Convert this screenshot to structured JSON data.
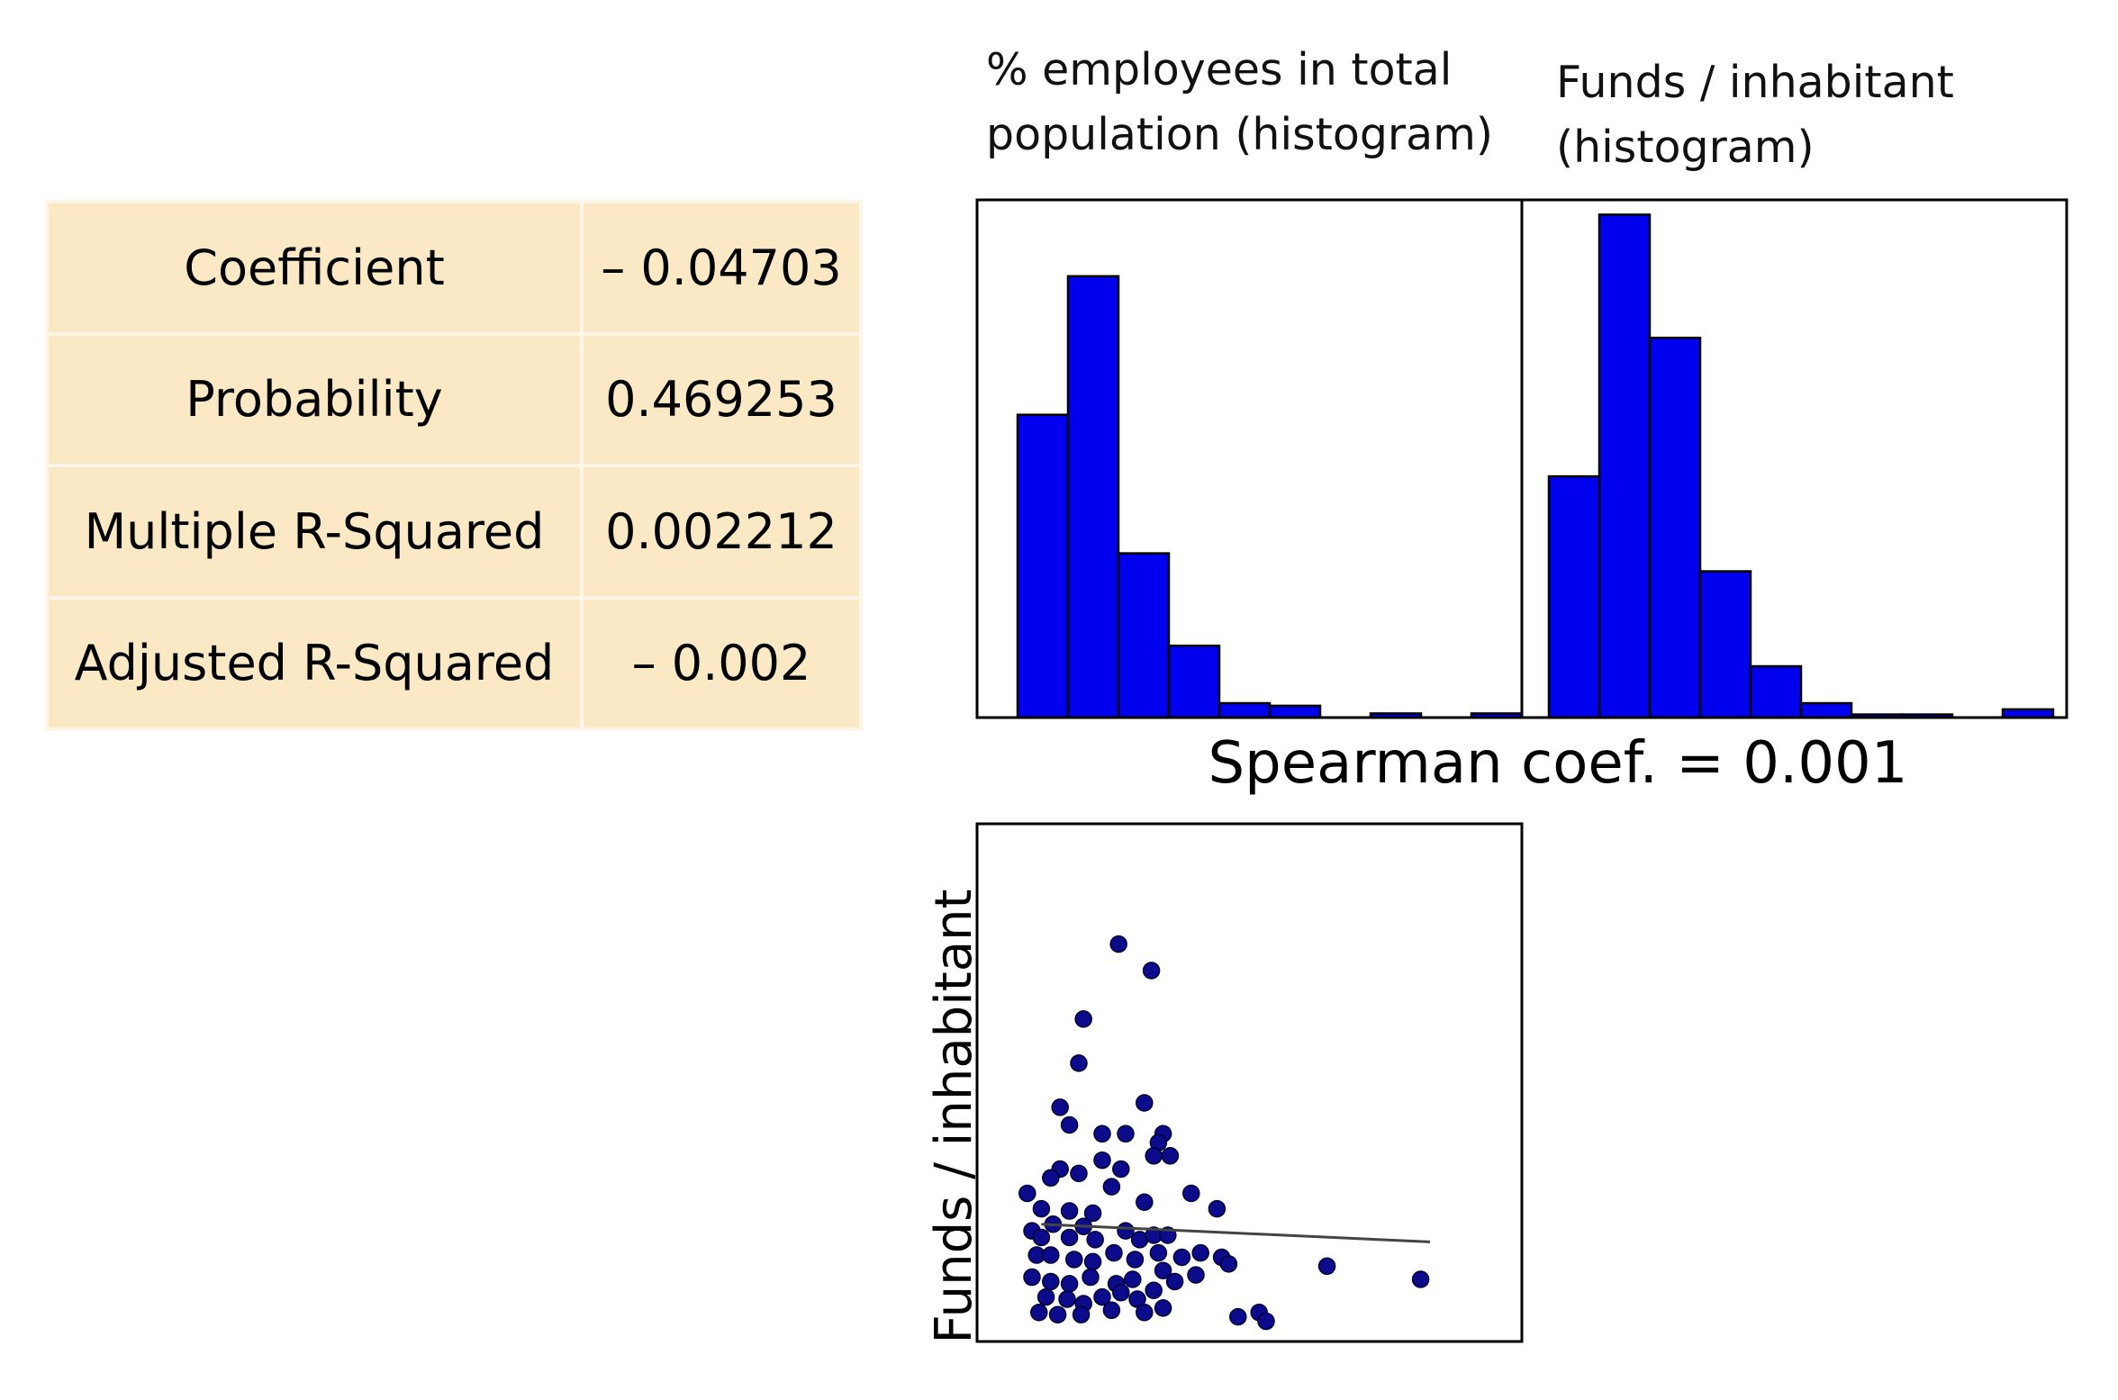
{
  "stats": {
    "rows": [
      {
        "label": "Coefficient",
        "value": "– 0.04703"
      },
      {
        "label": "Probability",
        "value": "0.469253"
      },
      {
        "label": "Multiple R-Squared",
        "value": "0.002212"
      },
      {
        "label": "Adjusted R-Squared",
        "value": "– 0.002"
      }
    ]
  },
  "titles": {
    "hist1": "% employees in total population (histogram)",
    "hist2": "Funds / inhabitant (histogram)",
    "spearman": "Spearman coef. = 0.001",
    "scatter_ylabel": "Funds / inhabitant"
  },
  "colors": {
    "bar_fill": "#0000ee",
    "bar_stroke": "#000000",
    "point_fill": "#0b0b8c",
    "point_stroke": "#000033",
    "trend_line": "#444444",
    "table_bg": "#fbe9c6"
  },
  "chart_data": [
    {
      "type": "bar",
      "title": "% employees in total population (histogram)",
      "bins": 10,
      "values": [
        59,
        86,
        32,
        14,
        2.8,
        2.3,
        0,
        0.8,
        0,
        0.8
      ],
      "ylim": [
        0,
        100
      ],
      "xlabel": "",
      "ylabel": ""
    },
    {
      "type": "bar",
      "title": "Funds / inhabitant (histogram)",
      "bins": 10,
      "values": [
        47,
        98,
        74,
        28.5,
        10,
        2.8,
        0.6,
        0.6,
        0,
        1.6
      ],
      "ylim": [
        0,
        100
      ],
      "xlabel": "",
      "ylabel": ""
    },
    {
      "type": "scatter",
      "xlabel": "",
      "ylabel": "Funds / inhabitant",
      "xlim": [
        0,
        10
      ],
      "ylim": [
        0,
        10
      ],
      "points": [
        [
          2.35,
          8.6
        ],
        [
          3.05,
          8.0
        ],
        [
          1.6,
          6.9
        ],
        [
          1.5,
          5.9
        ],
        [
          2.9,
          5.0
        ],
        [
          1.1,
          4.9
        ],
        [
          1.3,
          4.5
        ],
        [
          2.5,
          4.3
        ],
        [
          2.0,
          4.3
        ],
        [
          3.3,
          4.3
        ],
        [
          3.2,
          4.1
        ],
        [
          3.1,
          3.8
        ],
        [
          3.45,
          3.8
        ],
        [
          1.1,
          3.5
        ],
        [
          2.0,
          3.7
        ],
        [
          0.9,
          3.3
        ],
        [
          2.4,
          3.5
        ],
        [
          0.4,
          2.95
        ],
        [
          1.5,
          3.4
        ],
        [
          2.2,
          3.1
        ],
        [
          3.9,
          2.95
        ],
        [
          2.9,
          2.75
        ],
        [
          4.45,
          2.6
        ],
        [
          1.3,
          2.55
        ],
        [
          0.7,
          2.6
        ],
        [
          1.8,
          2.5
        ],
        [
          0.5,
          2.1
        ],
        [
          0.7,
          1.95
        ],
        [
          0.95,
          2.25
        ],
        [
          1.3,
          1.95
        ],
        [
          1.6,
          2.2
        ],
        [
          1.85,
          1.9
        ],
        [
          2.5,
          2.1
        ],
        [
          2.8,
          1.9
        ],
        [
          3.1,
          2.0
        ],
        [
          3.4,
          2.0
        ],
        [
          0.6,
          1.55
        ],
        [
          0.9,
          1.55
        ],
        [
          1.4,
          1.45
        ],
        [
          1.8,
          1.4
        ],
        [
          2.25,
          1.6
        ],
        [
          2.7,
          1.45
        ],
        [
          3.2,
          1.6
        ],
        [
          3.7,
          1.5
        ],
        [
          4.1,
          1.6
        ],
        [
          0.5,
          1.05
        ],
        [
          0.9,
          0.95
        ],
        [
          1.3,
          0.9
        ],
        [
          1.75,
          1.05
        ],
        [
          2.3,
          0.9
        ],
        [
          2.65,
          1.0
        ],
        [
          3.3,
          1.2
        ],
        [
          3.55,
          0.95
        ],
        [
          4.55,
          1.5
        ],
        [
          4.7,
          1.35
        ],
        [
          4.0,
          1.1
        ],
        [
          0.8,
          0.6
        ],
        [
          1.25,
          0.55
        ],
        [
          1.6,
          0.45
        ],
        [
          2.0,
          0.6
        ],
        [
          2.4,
          0.7
        ],
        [
          2.75,
          0.55
        ],
        [
          3.1,
          0.75
        ],
        [
          0.65,
          0.25
        ],
        [
          1.05,
          0.2
        ],
        [
          1.55,
          0.2
        ],
        [
          2.2,
          0.3
        ],
        [
          2.9,
          0.25
        ],
        [
          3.3,
          0.35
        ],
        [
          6.8,
          1.3
        ],
        [
          8.8,
          1.0
        ],
        [
          4.9,
          0.15
        ],
        [
          5.35,
          0.25
        ],
        [
          5.5,
          0.05
        ]
      ],
      "trend_line": {
        "x": [
          0.7,
          9.0
        ],
        "y": [
          2.25,
          1.85
        ]
      }
    }
  ]
}
